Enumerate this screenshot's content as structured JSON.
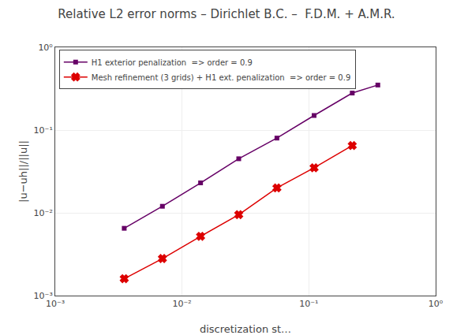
{
  "chart_data": {
    "type": "line",
    "title": "Relative L2 error norms – Dirichlet B.C. –  F.D.M. + A.M.R.",
    "x_label": "discretization st…",
    "y_label": "|u−uh||/||u||",
    "log": true,
    "grid": true,
    "legend": "upper left",
    "xlim": [
      0.001,
      1
    ],
    "ylim": [
      0.001,
      1
    ],
    "xticks": [
      {
        "value": 0.001,
        "label": "10⁻³"
      },
      {
        "value": 0.01,
        "label": "10⁻²"
      },
      {
        "value": 0.1,
        "label": "10⁻¹"
      },
      {
        "value": 1,
        "label": "10⁰"
      }
    ],
    "yticks": [
      {
        "value": 0.001,
        "label": "10⁻³"
      },
      {
        "value": 0.01,
        "label": "10⁻²"
      },
      {
        "value": 0.1,
        "label": "10⁻¹"
      },
      {
        "value": 1,
        "label": "10⁰"
      }
    ],
    "series": [
      {
        "name": "H1 exterior penalization  => order = 0.9",
        "color": "#660066",
        "marker": "square",
        "x": [
          0.0035,
          0.007,
          0.014,
          0.028,
          0.056,
          0.11,
          0.22,
          0.35
        ],
        "values": [
          0.0065,
          0.012,
          0.023,
          0.045,
          0.08,
          0.15,
          0.28,
          0.35
        ]
      },
      {
        "name": "Mesh refinement (3 grids) + H1 ext. penalization  => order = 0.9",
        "color": "#dd0000",
        "marker": "x",
        "x": [
          0.0035,
          0.007,
          0.014,
          0.028,
          0.056,
          0.11,
          0.22
        ],
        "values": [
          0.0016,
          0.0028,
          0.0052,
          0.0095,
          0.02,
          0.035,
          0.065
        ]
      }
    ]
  }
}
